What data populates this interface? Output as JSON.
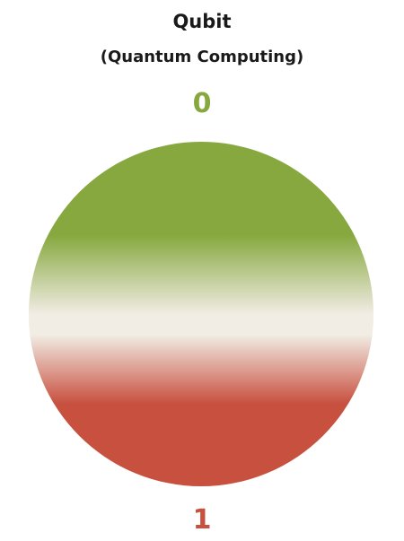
{
  "title": "Qubit",
  "subtitle": "(Quantum Computing)",
  "states": {
    "zero": {
      "label": "0",
      "color": "#86a83e"
    },
    "one": {
      "label": "1",
      "color": "#c8503f"
    }
  },
  "colors": {
    "top": "#86a83e",
    "middle": "#f1ece4",
    "bottom": "#c8503f"
  }
}
